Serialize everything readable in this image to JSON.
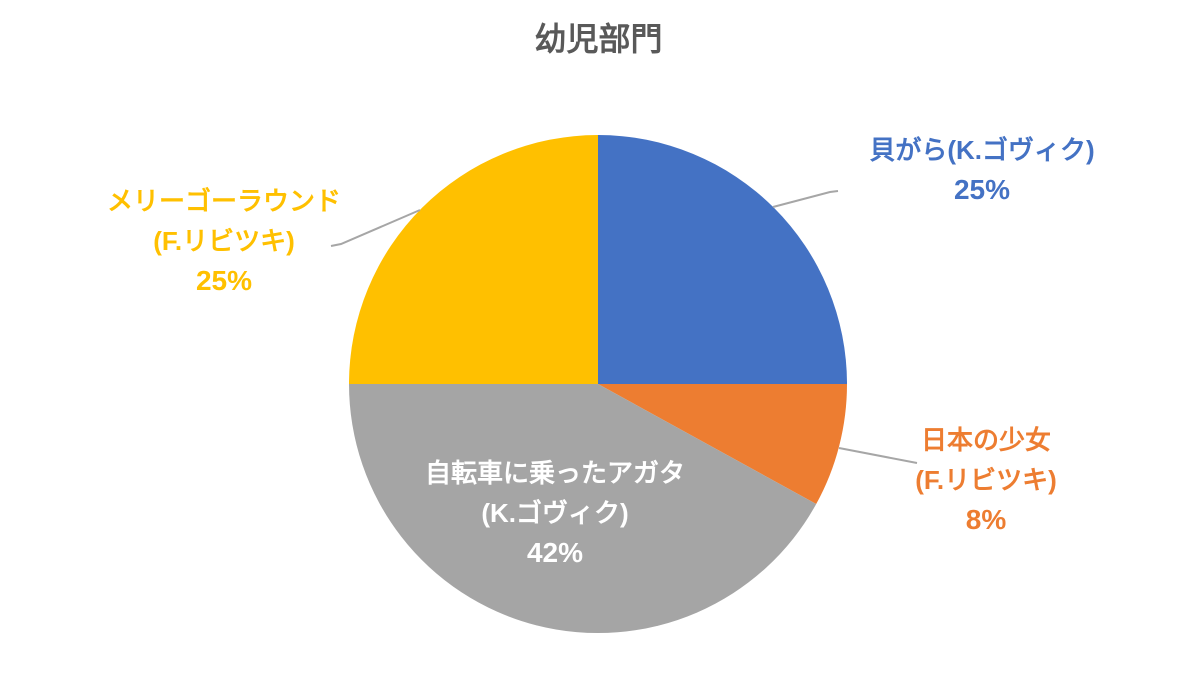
{
  "page": {
    "background": "#FFFFFF"
  },
  "chart_data": {
    "type": "pie",
    "title": "幼児部門",
    "direction": "clockwise",
    "start_angle_deg": 0,
    "legend": "none",
    "slices": [
      {
        "label": "貝がら(K.ゴヴィク)",
        "pct_label": "25%",
        "value": 25,
        "color": "#4472C4",
        "label_color": "#4472C4",
        "label_placement": "outside-upper-right"
      },
      {
        "label": "日本の少女",
        "sublabel": "(F.リビツキ)",
        "pct_label": "8%",
        "value": 8,
        "color": "#ED7D31",
        "label_color": "#ED7D31",
        "label_placement": "outside-lower-right"
      },
      {
        "label": "自転車に乗ったアガタ",
        "sublabel": "(K.ゴヴィク)",
        "pct_label": "42%",
        "value": 42,
        "color": "#A5A5A5",
        "label_color": "#FFFFFF",
        "label_placement": "inside"
      },
      {
        "label": "メリーゴーラウンド",
        "sublabel": "(F.リビツキ)",
        "pct_label": "25%",
        "value": 25,
        "color": "#FFC000",
        "label_color": "#FFC000",
        "label_placement": "outside-upper-left"
      }
    ],
    "colors": {
      "title": "#595959",
      "leader_line": "#A6A6A6"
    }
  }
}
